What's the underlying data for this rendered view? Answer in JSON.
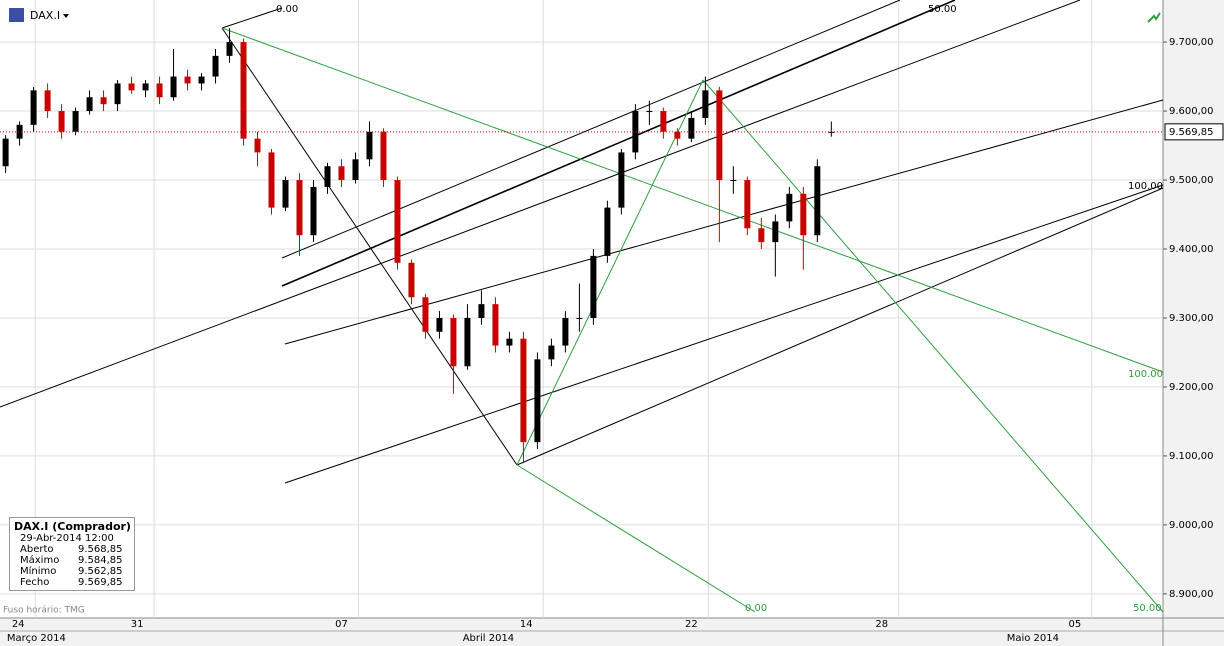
{
  "chart_data": {
    "type": "candlestick",
    "symbol": "DAX.I",
    "timezone_note": "Fuso horário: TMG",
    "candles": {
      "open": [
        9520,
        9560,
        9580,
        9630,
        9600,
        9570,
        9600,
        9620,
        9610,
        9640,
        9630,
        9640,
        9620,
        9650,
        9640,
        9650,
        9680,
        9700,
        9560,
        9540,
        9460,
        9500,
        9420,
        9490,
        9520,
        9500,
        9530,
        9570,
        9500,
        9380,
        9330,
        9280,
        9300,
        9230,
        9300,
        9320,
        9260,
        9270,
        9120,
        9240,
        9260,
        9300,
        9300,
        9390,
        9460,
        9540,
        9600,
        9600,
        9570,
        9560,
        9590,
        9630,
        9500,
        9500,
        9430,
        9410,
        9440,
        9480,
        9420,
        9568.85
      ],
      "high": [
        9565,
        9585,
        9635,
        9640,
        9610,
        9605,
        9630,
        9630,
        9645,
        9650,
        9645,
        9650,
        9690,
        9660,
        9655,
        9690,
        9720,
        9705,
        9570,
        9545,
        9505,
        9510,
        9500,
        9525,
        9530,
        9540,
        9585,
        9575,
        9505,
        9385,
        9335,
        9310,
        9305,
        9320,
        9340,
        9330,
        9280,
        9280,
        9250,
        9270,
        9310,
        9350,
        9400,
        9470,
        9545,
        9610,
        9615,
        9605,
        9575,
        9600,
        9650,
        9635,
        9520,
        9505,
        9445,
        9450,
        9490,
        9490,
        9530,
        9584.85
      ],
      "low": [
        9510,
        9550,
        9570,
        9590,
        9560,
        9565,
        9595,
        9600,
        9600,
        9625,
        9620,
        9610,
        9615,
        9630,
        9630,
        9640,
        9670,
        9550,
        9520,
        9450,
        9455,
        9390,
        9410,
        9480,
        9490,
        9495,
        9520,
        9490,
        9370,
        9320,
        9270,
        9270,
        9190,
        9225,
        9290,
        9250,
        9250,
        9090,
        9110,
        9230,
        9250,
        9280,
        9290,
        9380,
        9450,
        9530,
        9580,
        9560,
        9550,
        9555,
        9580,
        9410,
        9480,
        9420,
        9400,
        9360,
        9430,
        9370,
        9410,
        9562.85
      ],
      "close": [
        9560,
        9580,
        9630,
        9600,
        9570,
        9600,
        9620,
        9610,
        9640,
        9630,
        9640,
        9620,
        9650,
        9640,
        9650,
        9680,
        9700,
        9560,
        9540,
        9460,
        9500,
        9420,
        9490,
        9520,
        9500,
        9530,
        9570,
        9500,
        9380,
        9330,
        9280,
        9300,
        9230,
        9300,
        9320,
        9260,
        9270,
        9120,
        9240,
        9260,
        9300,
        9300,
        9390,
        9460,
        9540,
        9600,
        9600,
        9570,
        9560,
        9590,
        9630,
        9500,
        9500,
        9430,
        9410,
        9440,
        9480,
        9420,
        9520,
        9569.85
      ]
    },
    "up_color": "#000000",
    "down_color": "#cc0000",
    "xlim": [
      -0.4,
      82.7
    ],
    "xticks": [
      {
        "value": 0.9,
        "label": "24"
      },
      {
        "value": 9.4,
        "label": "31"
      },
      {
        "value": 24,
        "label": "07"
      },
      {
        "value": 37.2,
        "label": "14"
      },
      {
        "value": 49,
        "label": "22"
      },
      {
        "value": 62.6,
        "label": "28"
      },
      {
        "value": 76.4,
        "label": "05"
      }
    ],
    "month_ticks": [
      {
        "value": 2.2,
        "label": "Março 2014"
      },
      {
        "value": 34.5,
        "label": "Abril 2014"
      },
      {
        "value": 73.4,
        "label": "Maio 2014"
      }
    ],
    "ylim": [
      8865,
      9761
    ],
    "yticks": [
      {
        "value": 8900,
        "label": "8.900,00"
      },
      {
        "value": 9000,
        "label": "9.000,00"
      },
      {
        "value": 9100,
        "label": "9.100,00"
      },
      {
        "value": 9200,
        "label": "9.200,00"
      },
      {
        "value": 9300,
        "label": "9.300,00"
      },
      {
        "value": 9400,
        "label": "9.400,00"
      },
      {
        "value": 9500,
        "label": "9.500,00"
      },
      {
        "value": 9600,
        "label": "9.600,00"
      },
      {
        "value": 9700,
        "label": "9.700,00"
      }
    ],
    "grid": true,
    "last_price": {
      "value": 9569.85,
      "label": "9.569,85"
    },
    "fib_labels": [
      "0.00",
      "50.00",
      "100.00",
      "100.00",
      "0.00",
      "50.00"
    ],
    "info_box": {
      "title": "DAX.I (Comprador)",
      "date": "29-Abr-2014 12:00",
      "rows": [
        [
          "Aberto",
          "9.568,85"
        ],
        [
          "Máximo",
          "9.584,85"
        ],
        [
          "Mínimo",
          "9.562,85"
        ],
        [
          "Fecho",
          "9.569,85"
        ]
      ]
    }
  }
}
